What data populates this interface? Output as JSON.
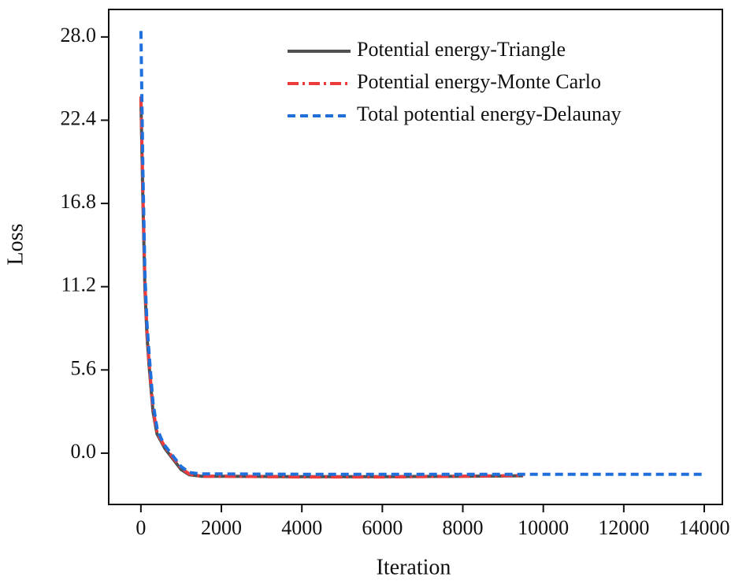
{
  "chart_data": {
    "type": "line",
    "x_label": "Iteration",
    "y_label": "Loss",
    "x": [
      0,
      50,
      100,
      150,
      200,
      300,
      400,
      500,
      600,
      800,
      1000,
      1200,
      1500,
      2000,
      4000,
      6000,
      8000,
      9500,
      12000,
      14000
    ],
    "series": [
      {
        "name": "Potential energy-Triangle",
        "color": "#505050",
        "dash": "solid",
        "values": [
          23.8,
          17,
          11,
          8,
          6,
          2.8,
          1.3,
          0.8,
          0.3,
          -0.4,
          -1.1,
          -1.45,
          -1.55,
          -1.55,
          -1.58,
          -1.58,
          -1.55,
          -1.52,
          null,
          null
        ]
      },
      {
        "name": "Potential energy-Monte Carlo",
        "color": "#ee3b3b",
        "dash": "dashdot",
        "values": [
          24.0,
          17.5,
          11.5,
          8.3,
          6.2,
          3.0,
          1.4,
          0.9,
          0.4,
          -0.3,
          -1.0,
          -1.4,
          -1.55,
          -1.55,
          -1.6,
          -1.6,
          -1.55,
          -1.5,
          null,
          null
        ]
      },
      {
        "name": "Total potential energy-Delaunay",
        "color": "#1f6fdc",
        "dash": "dashed",
        "values": [
          28.4,
          19,
          12,
          8.8,
          6.8,
          3.4,
          1.7,
          1.0,
          0.5,
          -0.2,
          -0.9,
          -1.3,
          -1.4,
          -1.4,
          -1.42,
          -1.42,
          -1.42,
          -1.42,
          -1.42,
          -1.42
        ]
      }
    ],
    "xlim": [
      -800,
      14450
    ],
    "ylim": [
      -3.45,
      29.85
    ],
    "xticks": [
      0,
      2000,
      4000,
      6000,
      8000,
      10000,
      12000,
      14000
    ],
    "yticks": [
      {
        "value": 0,
        "label": "0.0"
      },
      5.6,
      11.2,
      16.8,
      22.4,
      {
        "value": 28,
        "label": "28.0"
      }
    ],
    "legend": "upper right",
    "grid": false
  }
}
